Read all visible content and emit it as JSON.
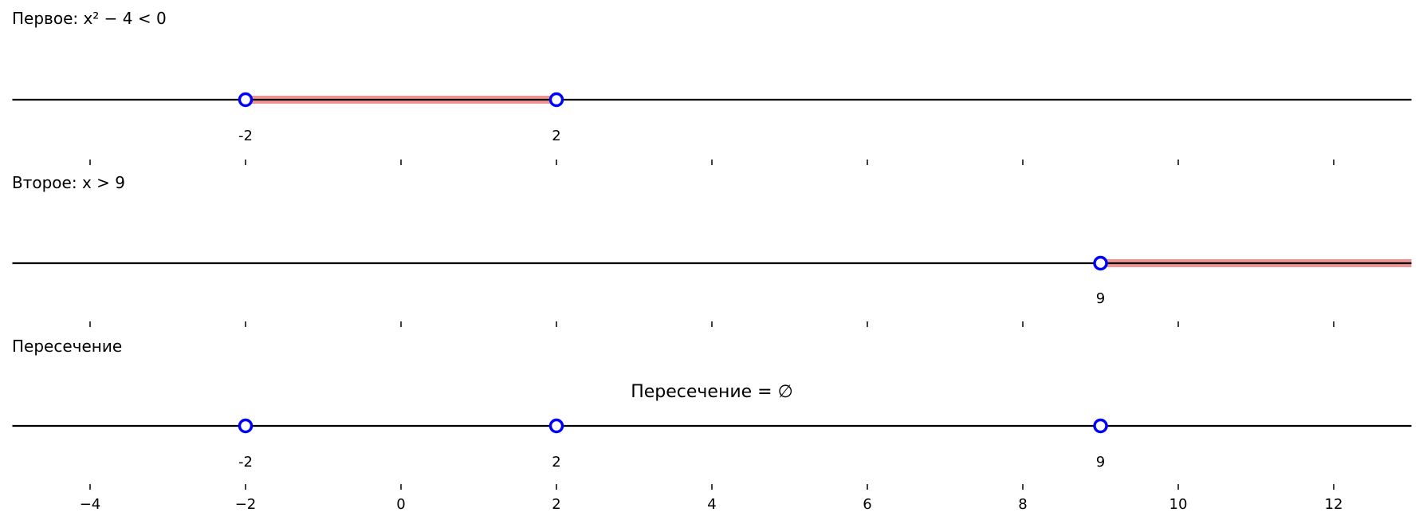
{
  "chart_data": [
    {
      "type": "number-line",
      "title": "Первое: x² − 4 < 0",
      "xlim": [
        -5,
        13
      ],
      "ticks": [
        -4,
        -2,
        0,
        2,
        4,
        6,
        8,
        10,
        12
      ],
      "show_tick_labels": false,
      "intervals": [
        {
          "from": -2,
          "to": 2
        }
      ],
      "points": [
        {
          "x": -2,
          "label": "-2",
          "open": true
        },
        {
          "x": 2,
          "label": "2",
          "open": true
        }
      ]
    },
    {
      "type": "number-line",
      "title": "Второе: x > 9",
      "xlim": [
        -5,
        13
      ],
      "ticks": [
        -4,
        -2,
        0,
        2,
        4,
        6,
        8,
        10,
        12
      ],
      "show_tick_labels": false,
      "intervals": [
        {
          "from": 9,
          "to": 13
        }
      ],
      "points": [
        {
          "x": 9,
          "label": "9",
          "open": true
        }
      ]
    },
    {
      "type": "number-line",
      "title": "Пересечение",
      "annotation": "Пересечение = ∅",
      "xlim": [
        -5,
        13
      ],
      "ticks": [
        -4,
        -2,
        0,
        2,
        4,
        6,
        8,
        10,
        12
      ],
      "tick_labels": [
        "−4",
        "−2",
        "0",
        "2",
        "4",
        "6",
        "8",
        "10",
        "12"
      ],
      "show_tick_labels": true,
      "intervals": [],
      "points": [
        {
          "x": -2,
          "label": "-2",
          "open": true
        },
        {
          "x": 2,
          "label": "2",
          "open": true
        },
        {
          "x": 9,
          "label": "9",
          "open": true
        }
      ]
    }
  ],
  "colors": {
    "line": "#000000",
    "interval": "#f08080",
    "point": "#0000ff"
  }
}
